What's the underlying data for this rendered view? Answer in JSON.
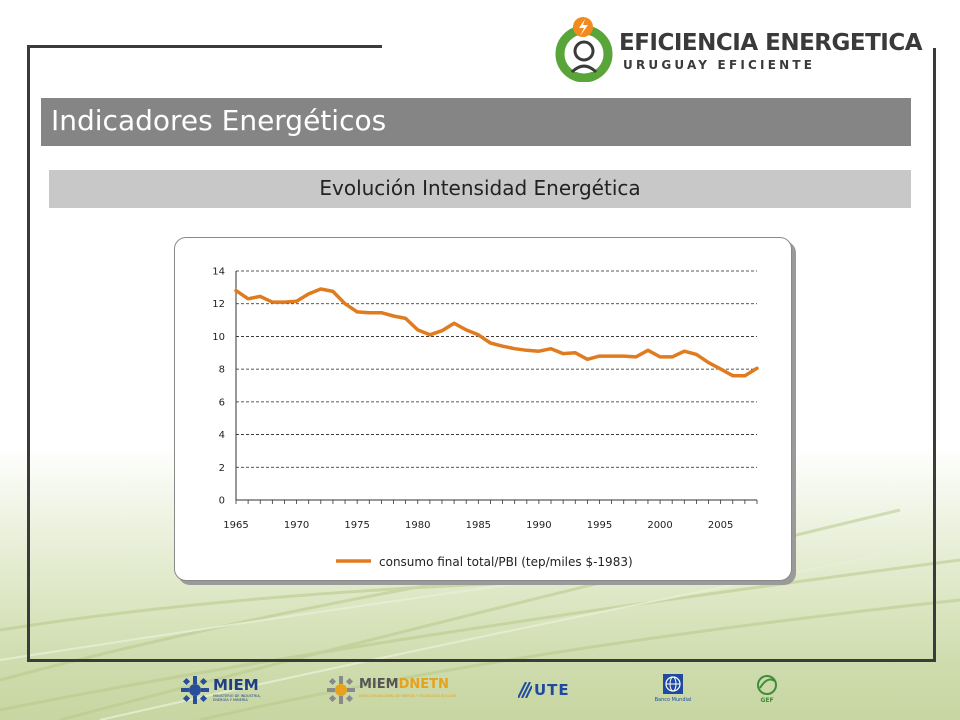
{
  "header": {
    "logo_title": "EFICIENCIA ENERGETICA",
    "logo_subtitle": "URUGUAY EFICIENTE"
  },
  "slide": {
    "title": "Indicadores Energéticos",
    "subtitle": "Evolución Intensidad Energética"
  },
  "chart_data": {
    "type": "line",
    "title": "",
    "xlabel": "",
    "ylabel": "",
    "xlim": [
      1965,
      2008
    ],
    "ylim": [
      0,
      14
    ],
    "yticks": [
      "0",
      "2",
      "4",
      "6",
      "8",
      "10",
      "12",
      "14"
    ],
    "xticks": [
      "1965",
      "1970",
      "1975",
      "1980",
      "1985",
      "1990",
      "1995",
      "2000",
      "2005"
    ],
    "grid": "horizontal-dashed",
    "legend": "bottom",
    "colors": {
      "line": "#e07b20"
    },
    "series": [
      {
        "name": "consumo final total/PBI (tep/miles $-1983)",
        "x": [
          1965,
          1966,
          1967,
          1968,
          1969,
          1970,
          1971,
          1972,
          1973,
          1974,
          1975,
          1976,
          1977,
          1978,
          1979,
          1980,
          1981,
          1982,
          1983,
          1984,
          1985,
          1986,
          1987,
          1988,
          1989,
          1990,
          1991,
          1992,
          1993,
          1994,
          1995,
          1996,
          1997,
          1998,
          1999,
          2000,
          2001,
          2002,
          2003,
          2004,
          2005,
          2006,
          2007,
          2008
        ],
        "values": [
          12.8,
          12.3,
          12.45,
          12.1,
          12.1,
          12.15,
          12.6,
          12.9,
          12.75,
          12.0,
          11.5,
          11.45,
          11.45,
          11.25,
          11.1,
          10.4,
          10.1,
          10.35,
          10.8,
          10.4,
          10.1,
          9.6,
          9.4,
          9.25,
          9.15,
          9.1,
          9.25,
          8.95,
          9.0,
          8.6,
          8.8,
          8.8,
          8.8,
          8.75,
          9.15,
          8.75,
          8.75,
          9.1,
          8.9,
          8.4,
          8.0,
          7.6,
          7.6,
          8.05
        ]
      }
    ]
  },
  "partners": {
    "miem": "MIEM",
    "miem_sub": "MINISTERIO DE INDUSTRIA, ENERGÍA Y MINERÍA",
    "miem_dnetn": "MIEM",
    "dnetn": "DNETN",
    "dnetn_sub": "DIRECCIÓN NACIONAL DE ENERGÍA Y TECNOLOGÍA NUCLEAR",
    "ute": "UTE",
    "banco": "Banco Mundial",
    "gef": "GEF"
  }
}
